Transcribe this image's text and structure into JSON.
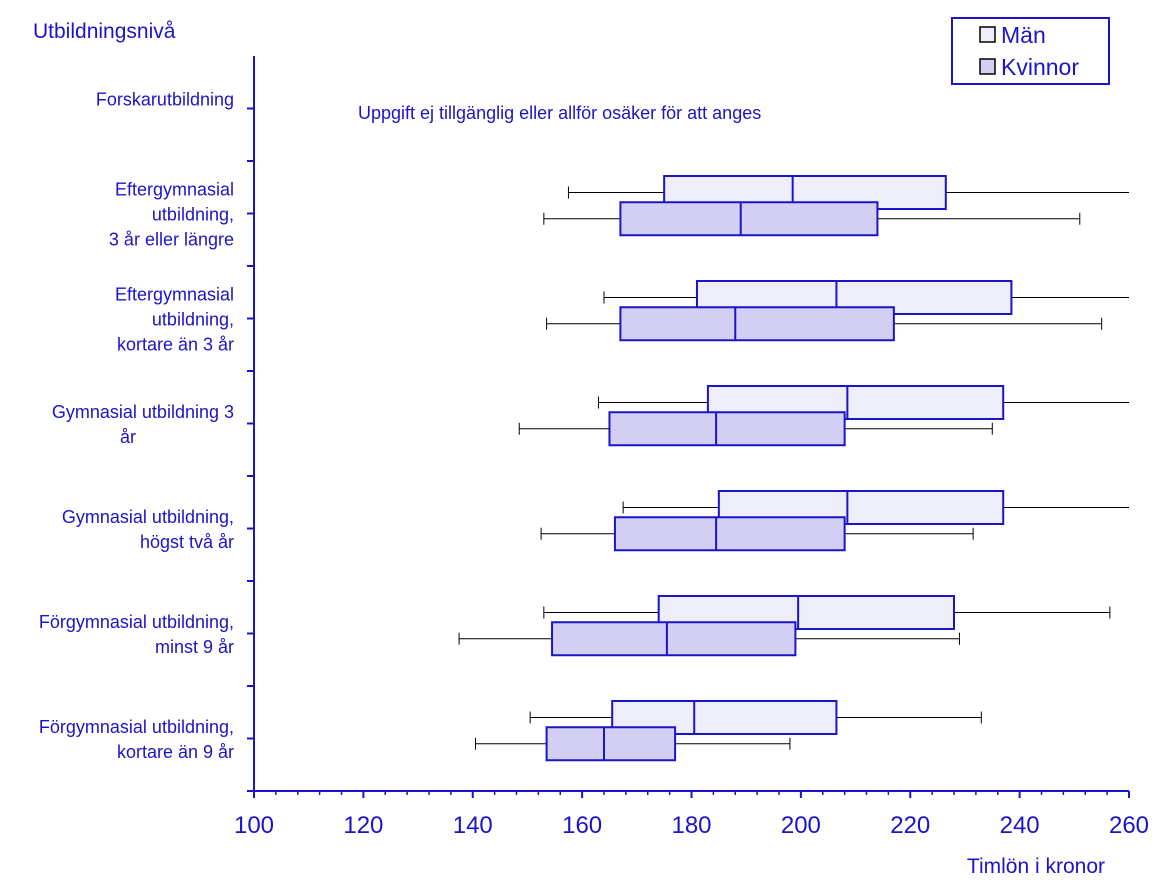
{
  "colors": {
    "ink": "#1c14c8",
    "men_fill": "#eeeefb",
    "women_fill": "#d2cff2",
    "whisker": "#000000"
  },
  "chart_data": {
    "type": "box",
    "ylabel": "Utbildningsnivå",
    "xlabel": "Timlön i kronor",
    "xlim": [
      100,
      260
    ],
    "xticks": [
      "100",
      "120",
      "140",
      "160",
      "180",
      "200",
      "220",
      "240",
      "260"
    ],
    "note": "Uppgift ej tillgänglig eller allför osäker för att anges",
    "legend": {
      "position": "top-right",
      "items": [
        {
          "label": "Män",
          "series": "men"
        },
        {
          "label": "Kvinnor",
          "series": "women"
        }
      ]
    },
    "categories": [
      {
        "label": [
          "Forskarutbildning"
        ],
        "men": null,
        "women": null
      },
      {
        "label": [
          "Eftergymnasial",
          "utbildning,",
          "3 år eller längre"
        ],
        "men": {
          "min": 157.5,
          "q1": 175,
          "median": 198.5,
          "q3": 226.5,
          "max": 260
        },
        "women": {
          "min": 153,
          "q1": 167,
          "median": 189,
          "q3": 214,
          "max": 251
        }
      },
      {
        "label": [
          "Eftergymnasial",
          "utbildning,",
          "kortare än 3 år"
        ],
        "men": {
          "min": 164,
          "q1": 181,
          "median": 206.5,
          "q3": 238.5,
          "max": 260
        },
        "women": {
          "min": 153.5,
          "q1": 167,
          "median": 188,
          "q3": 217,
          "max": 255
        }
      },
      {
        "label": [
          "Gymnasial utbildning 3",
          "år"
        ],
        "men": {
          "min": 163,
          "q1": 183,
          "median": 208.5,
          "q3": 237,
          "max": 260
        },
        "women": {
          "min": 148.5,
          "q1": 165,
          "median": 184.5,
          "q3": 208,
          "max": 235
        }
      },
      {
        "label": [
          "Gymnasial utbildning,",
          "högst två år"
        ],
        "men": {
          "min": 167.5,
          "q1": 185,
          "median": 208.5,
          "q3": 237,
          "max": 260
        },
        "women": {
          "min": 152.5,
          "q1": 166,
          "median": 184.5,
          "q3": 208,
          "max": 231.5
        }
      },
      {
        "label": [
          "Förgymnasial utbildning,",
          "minst 9 år"
        ],
        "men": {
          "min": 153,
          "q1": 174,
          "median": 199.5,
          "q3": 228,
          "max": 256.5
        },
        "women": {
          "min": 137.5,
          "q1": 154.5,
          "median": 175.5,
          "q3": 199,
          "max": 229
        }
      },
      {
        "label": [
          "Förgymnasial utbildning,",
          "kortare än 9 år"
        ],
        "men": {
          "min": 150.5,
          "q1": 165.5,
          "median": 180.5,
          "q3": 206.5,
          "max": 233
        },
        "women": {
          "min": 140.5,
          "q1": 153.5,
          "median": 164,
          "q3": 177,
          "max": 198
        }
      }
    ]
  }
}
